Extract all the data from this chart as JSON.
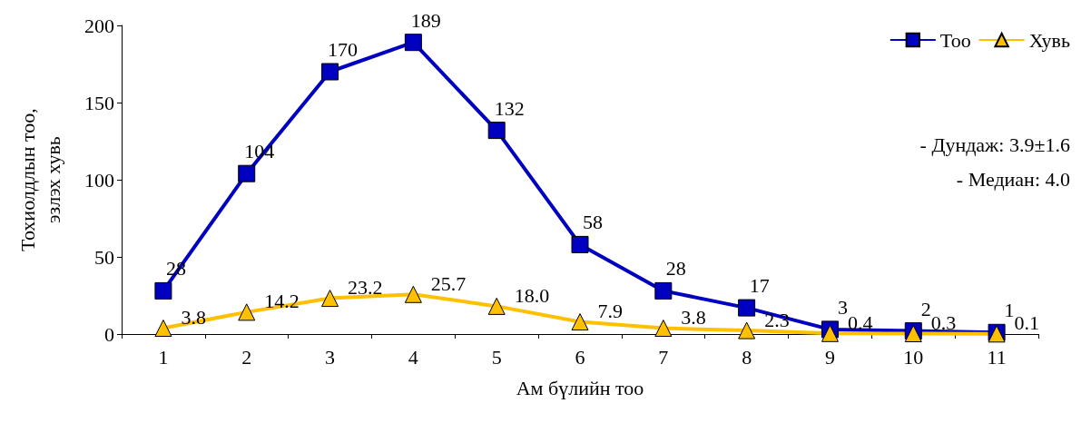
{
  "chart_data": {
    "type": "line",
    "xlabel": "Ам бүлийн тоо",
    "ylabel": "Тохиолдлын тоо,\nэзлэх хувь",
    "categories": [
      "1",
      "2",
      "3",
      "4",
      "5",
      "6",
      "7",
      "8",
      "9",
      "10",
      "11"
    ],
    "series": [
      {
        "name": "Тоо",
        "color": "#0000c0",
        "marker": "square",
        "values": [
          28,
          104,
          170,
          189,
          132,
          58,
          28,
          17,
          3,
          2,
          1
        ],
        "value_labels": [
          "28",
          "104",
          "170",
          "189",
          "132",
          "58",
          "28",
          "17",
          "3",
          "2",
          "1"
        ]
      },
      {
        "name": "Хувь",
        "color": "#ffc000",
        "marker": "triangle",
        "values": [
          3.8,
          14.2,
          23.2,
          25.7,
          18.0,
          7.9,
          3.8,
          2.3,
          0.4,
          0.3,
          0.1
        ],
        "value_labels": [
          "3.8",
          "14.2",
          "23.2",
          "25.7",
          "18.0",
          "7.9",
          "3.8",
          "2.3",
          "0.4",
          "0.3",
          "0.1"
        ]
      }
    ],
    "ylim": [
      0,
      200
    ],
    "yticks": [
      0,
      50,
      100,
      150,
      200
    ],
    "grid": false,
    "legend": "top right",
    "annotations": [
      "- Дундаж: 3.9±1.6",
      "- Медиан: 4.0"
    ]
  }
}
